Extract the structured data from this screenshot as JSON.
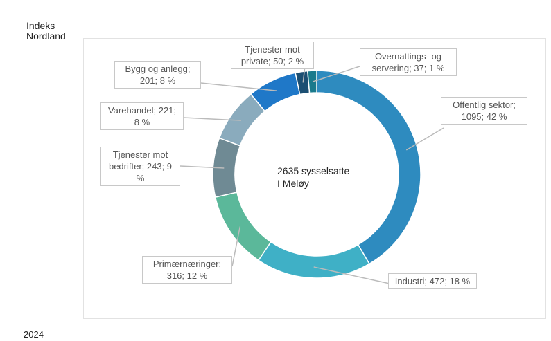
{
  "header": {
    "logo_lines": [
      "Indeks",
      "Nordland"
    ]
  },
  "footer": {
    "year": "2024"
  },
  "chart_data": {
    "type": "donut",
    "center_label": "2635 sysselsatte I Meløy",
    "values": [
      1095,
      472,
      316,
      243,
      221,
      201,
      50,
      37
    ],
    "value_labels": [
      "Offentlig sektor; 1095; 42 %",
      "Industri; 472; 18 %",
      "Primærnæringer; 316; 12 %",
      "Tjenester mot bedrifter; 243; 9 %",
      "Varehandel; 221; 8 %",
      "Bygg og anlegg; 201; 8 %",
      "Tjenester mot private; 50; 2 %",
      "Overnattings- og servering; 37; 1 %"
    ],
    "colors": [
      "#2e8bbf",
      "#3fb0c6",
      "#5bb89a",
      "#6f8a94",
      "#8aabbd",
      "#1f78c8",
      "#1c4f73",
      "#1a7a8c"
    ]
  }
}
